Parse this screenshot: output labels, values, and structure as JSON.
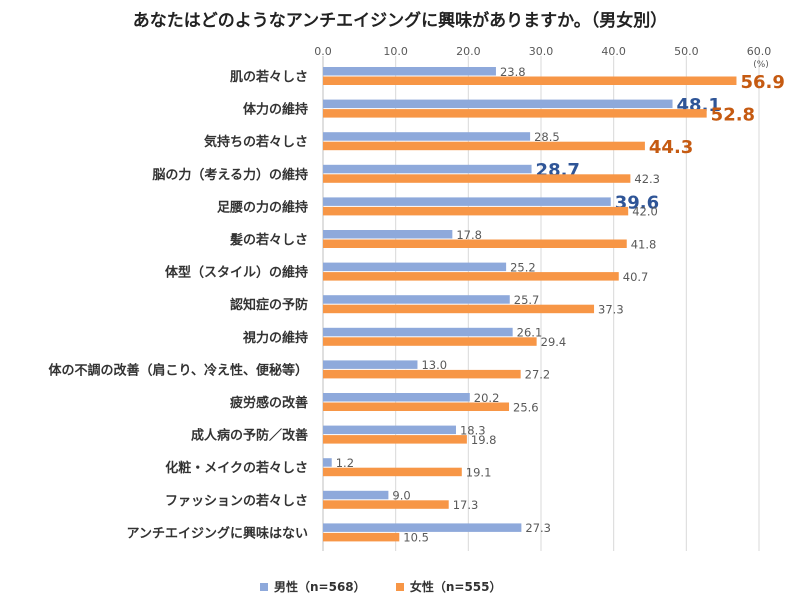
{
  "chart_data": {
    "type": "bar",
    "orientation": "horizontal",
    "title": "あなたはどのようなアンチエイジングに興味がありますか。（男女別）",
    "unit": "(%)",
    "xlim": [
      0,
      60
    ],
    "ticks": [
      "0.0",
      "10.0",
      "20.0",
      "30.0",
      "40.0",
      "50.0",
      "60.0"
    ],
    "grid": true,
    "legend_position": "bottom",
    "categories": [
      "肌の若々しさ",
      "体力の維持",
      "気持ちの若々しさ",
      "脳の力（考える力）の維持",
      "足腰の力の維持",
      "髪の若々しさ",
      "体型（スタイル）の維持",
      "認知症の予防",
      "視力の維持",
      "体の不調の改善（肩こり、冷え性、便秘等）",
      "疲労感の改善",
      "成人病の予防／改善",
      "化粧・メイクの若々しさ",
      "ファッションの若々しさ",
      "アンチエイジングに興味はない"
    ],
    "series": [
      {
        "name": "男性（n=568）",
        "color": "#8ea9db",
        "highlight_color": "#2f5597",
        "values": [
          23.8,
          48.1,
          28.5,
          28.7,
          39.6,
          17.8,
          25.2,
          25.7,
          26.1,
          13.0,
          20.2,
          18.3,
          1.2,
          9.0,
          27.3
        ],
        "labels": [
          "23.8",
          "48.1",
          "28.5",
          "28.7",
          "39.6",
          "17.8",
          "25.2",
          "25.7",
          "26.1",
          "13.0",
          "20.2",
          "18.3",
          "1.2",
          "9.0",
          "27.3"
        ],
        "highlight": [
          false,
          true,
          false,
          true,
          true,
          false,
          false,
          false,
          false,
          false,
          false,
          false,
          false,
          false,
          false
        ]
      },
      {
        "name": "女性（n=555）",
        "color": "#f79646",
        "highlight_color": "#c55a11",
        "values": [
          56.9,
          52.8,
          44.3,
          42.3,
          42.0,
          41.8,
          40.7,
          37.3,
          29.4,
          27.2,
          25.6,
          19.8,
          19.1,
          17.3,
          10.5
        ],
        "labels": [
          "56.9",
          "52.8",
          "44.3",
          "42.3",
          "42.0",
          "41.8",
          "40.7",
          "37.3",
          "29.4",
          "27.2",
          "25.6",
          "19.8",
          "19.1",
          "17.3",
          "10.5"
        ],
        "highlight": [
          true,
          true,
          true,
          false,
          false,
          false,
          false,
          false,
          false,
          false,
          false,
          false,
          false,
          false,
          false
        ]
      }
    ]
  }
}
